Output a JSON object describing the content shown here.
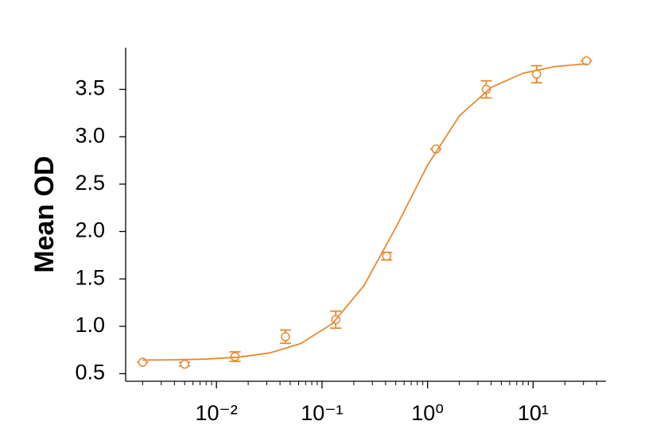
{
  "chart_data": {
    "type": "scatter",
    "y_label": "Mean OD",
    "x_scale": "log",
    "xlim": [
      0.00138,
      49
    ],
    "ylim": [
      0.42,
      3.94
    ],
    "xticks": [
      {
        "value": 0.01,
        "label": "10⁻²"
      },
      {
        "value": 0.1,
        "label": "10⁻¹"
      },
      {
        "value": 1,
        "label": "10⁰"
      },
      {
        "value": 10,
        "label": "10¹"
      }
    ],
    "minor_xticks": [
      0.002,
      0.003,
      0.004,
      0.005,
      0.006,
      0.007,
      0.008,
      0.009,
      0.02,
      0.03,
      0.04,
      0.05,
      0.06,
      0.07,
      0.08,
      0.09,
      0.2,
      0.3,
      0.4,
      0.5,
      0.6,
      0.7,
      0.8,
      0.9,
      2,
      3,
      4,
      5,
      6,
      7,
      8,
      9,
      20,
      30,
      40
    ],
    "yticks": [
      {
        "value": 0.5,
        "label": "0.5"
      },
      {
        "value": 1,
        "label": "1.0"
      },
      {
        "value": 1.5,
        "label": "1.5"
      },
      {
        "value": 2,
        "label": "2.0"
      },
      {
        "value": 2.5,
        "label": "2.5"
      },
      {
        "value": 3,
        "label": "3.0"
      },
      {
        "value": 3.5,
        "label": "3.5"
      }
    ],
    "series": [
      {
        "color": "#e8892f",
        "x": [
          0.002,
          0.005,
          0.015,
          0.045,
          0.135,
          0.41,
          1.2,
          3.6,
          10.8,
          32
        ],
        "values": [
          0.62,
          0.6,
          0.68,
          0.89,
          1.07,
          1.74,
          2.87,
          3.5,
          3.66,
          3.8
        ],
        "errors": [
          0,
          0.02,
          0.05,
          0.07,
          0.09,
          0.04,
          0,
          0.09,
          0.09,
          0
        ]
      },
      {
        "color": "#e8892f",
        "kind": "fit",
        "x": [
          0.002,
          0.004,
          0.008,
          0.016,
          0.032,
          0.063,
          0.126,
          0.25,
          0.5,
          1,
          2,
          4,
          8,
          16,
          32
        ],
        "values": [
          0.643,
          0.646,
          0.654,
          0.674,
          0.719,
          0.818,
          1.03,
          1.43,
          2.04,
          2.7,
          3.22,
          3.52,
          3.67,
          3.74,
          3.77
        ]
      }
    ]
  }
}
